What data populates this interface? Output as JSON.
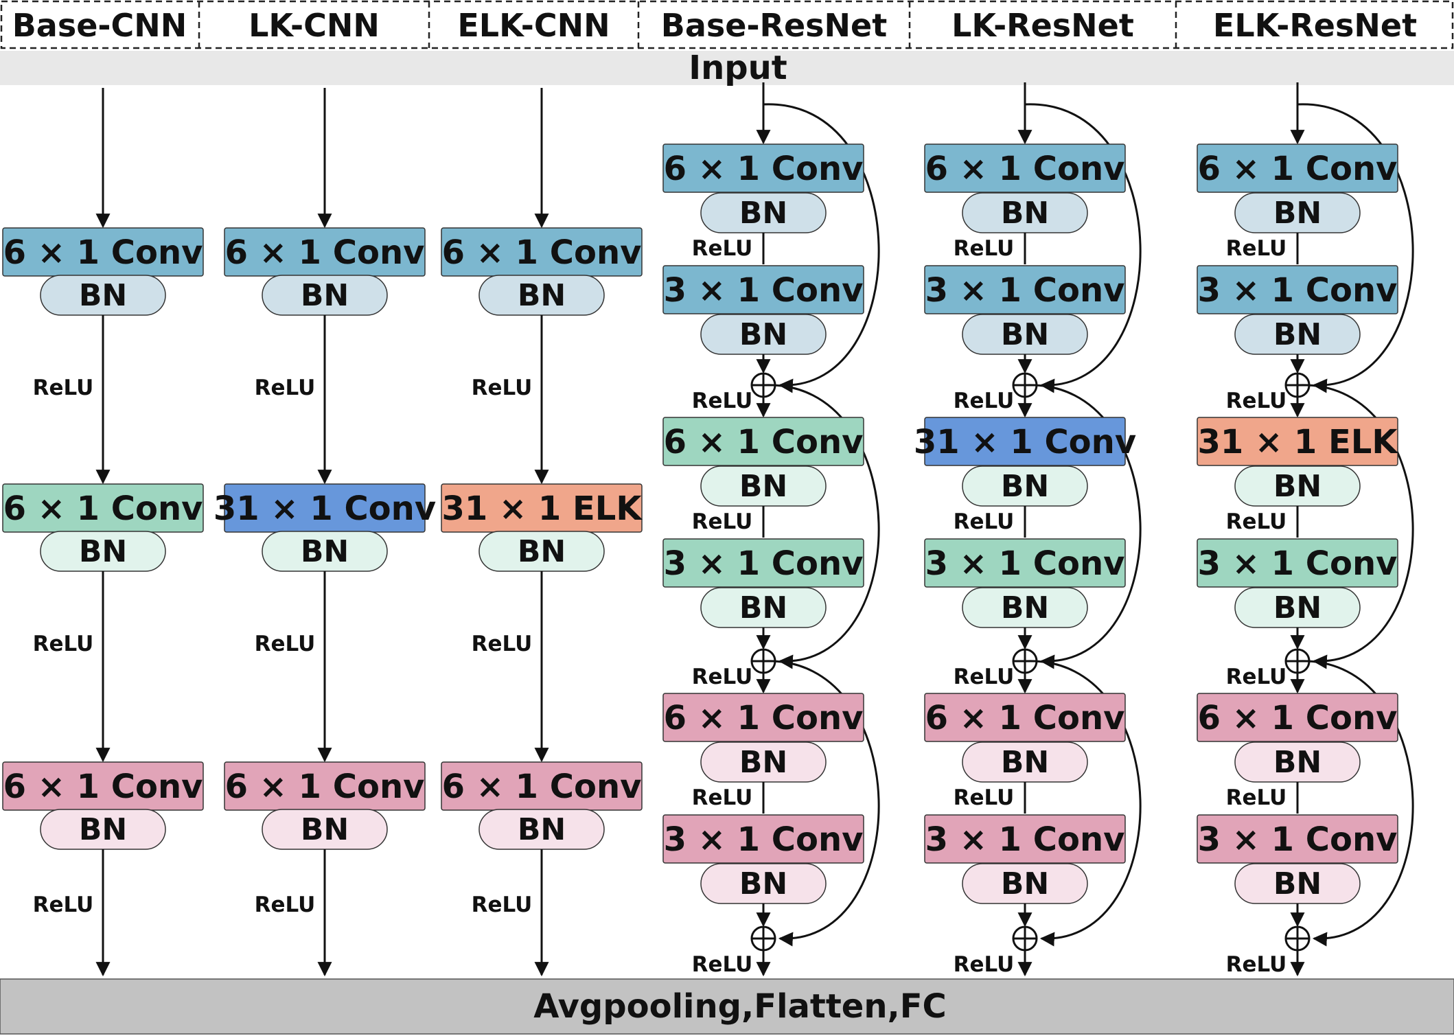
{
  "colors": {
    "stage1_conv": "#7cb7cf",
    "stage1_bn": "#cfe0e9",
    "stage2_conv": "#9ed6c0",
    "stage2_bn": "#e1f3ec",
    "stage3_conv": "#e1a4b8",
    "stage3_bn": "#f6e2ea",
    "lk_conv": "#6797db",
    "elk": "#f0a68b",
    "input_bar": "#e8e8e8",
    "output_bar": "#c2c2c2"
  },
  "diagram": {
    "input_label": "Input",
    "output_label": "Avgpooling,Flatten,FC",
    "bn_label": "BN",
    "relu_label": "ReLU",
    "models": [
      {
        "name": "Base-CNN",
        "type": "cnn",
        "stages": [
          {
            "conv": "6 × 1 Conv",
            "color": "stage1_conv",
            "bn_color": "stage1_bn"
          },
          {
            "conv": "6 × 1 Conv",
            "color": "stage2_conv",
            "bn_color": "stage2_bn"
          },
          {
            "conv": "6 × 1 Conv",
            "color": "stage3_conv",
            "bn_color": "stage3_bn"
          }
        ]
      },
      {
        "name": "LK-CNN",
        "type": "cnn",
        "stages": [
          {
            "conv": "6 × 1 Conv",
            "color": "stage1_conv",
            "bn_color": "stage1_bn"
          },
          {
            "conv": "31 × 1 Conv",
            "color": "lk_conv",
            "bn_color": "stage2_bn"
          },
          {
            "conv": "6 × 1 Conv",
            "color": "stage3_conv",
            "bn_color": "stage3_bn"
          }
        ]
      },
      {
        "name": "ELK-CNN",
        "type": "cnn",
        "stages": [
          {
            "conv": "6 × 1 Conv",
            "color": "stage1_conv",
            "bn_color": "stage1_bn"
          },
          {
            "conv": "31 × 1 ELK",
            "color": "elk",
            "bn_color": "stage2_bn"
          },
          {
            "conv": "6 × 1 Conv",
            "color": "stage3_conv",
            "bn_color": "stage3_bn"
          }
        ]
      },
      {
        "name": "Base-ResNet",
        "type": "resnet",
        "stages": [
          {
            "conv1": "6 × 1 Conv",
            "conv1_color": "stage1_conv",
            "conv2": "3 × 1 Conv",
            "conv2_color": "stage1_conv",
            "bn_color": "stage1_bn"
          },
          {
            "conv1": "6 × 1 Conv",
            "conv1_color": "stage2_conv",
            "conv2": "3 × 1 Conv",
            "conv2_color": "stage2_conv",
            "bn_color": "stage2_bn"
          },
          {
            "conv1": "6 × 1 Conv",
            "conv1_color": "stage3_conv",
            "conv2": "3 × 1 Conv",
            "conv2_color": "stage3_conv",
            "bn_color": "stage3_bn"
          }
        ]
      },
      {
        "name": "LK-ResNet",
        "type": "resnet",
        "stages": [
          {
            "conv1": "6 × 1 Conv",
            "conv1_color": "stage1_conv",
            "conv2": "3 × 1 Conv",
            "conv2_color": "stage1_conv",
            "bn_color": "stage1_bn"
          },
          {
            "conv1": "31 × 1 Conv",
            "conv1_color": "lk_conv",
            "conv2": "3 × 1 Conv",
            "conv2_color": "stage2_conv",
            "bn_color": "stage2_bn"
          },
          {
            "conv1": "6 × 1 Conv",
            "conv1_color": "stage3_conv",
            "conv2": "3 × 1 Conv",
            "conv2_color": "stage3_conv",
            "bn_color": "stage3_bn"
          }
        ]
      },
      {
        "name": "ELK-ResNet",
        "type": "resnet",
        "stages": [
          {
            "conv1": "6 × 1 Conv",
            "conv1_color": "stage1_conv",
            "conv2": "3 × 1 Conv",
            "conv2_color": "stage1_conv",
            "bn_color": "stage1_bn"
          },
          {
            "conv1": "31 × 1 ELK",
            "conv1_color": "elk",
            "conv2": "3 × 1 Conv",
            "conv2_color": "stage2_conv",
            "bn_color": "stage2_bn"
          },
          {
            "conv1": "6 × 1 Conv",
            "conv1_color": "stage3_conv",
            "conv2": "3 × 1 Conv",
            "conv2_color": "stage3_conv",
            "bn_color": "stage3_bn"
          }
        ]
      }
    ]
  }
}
